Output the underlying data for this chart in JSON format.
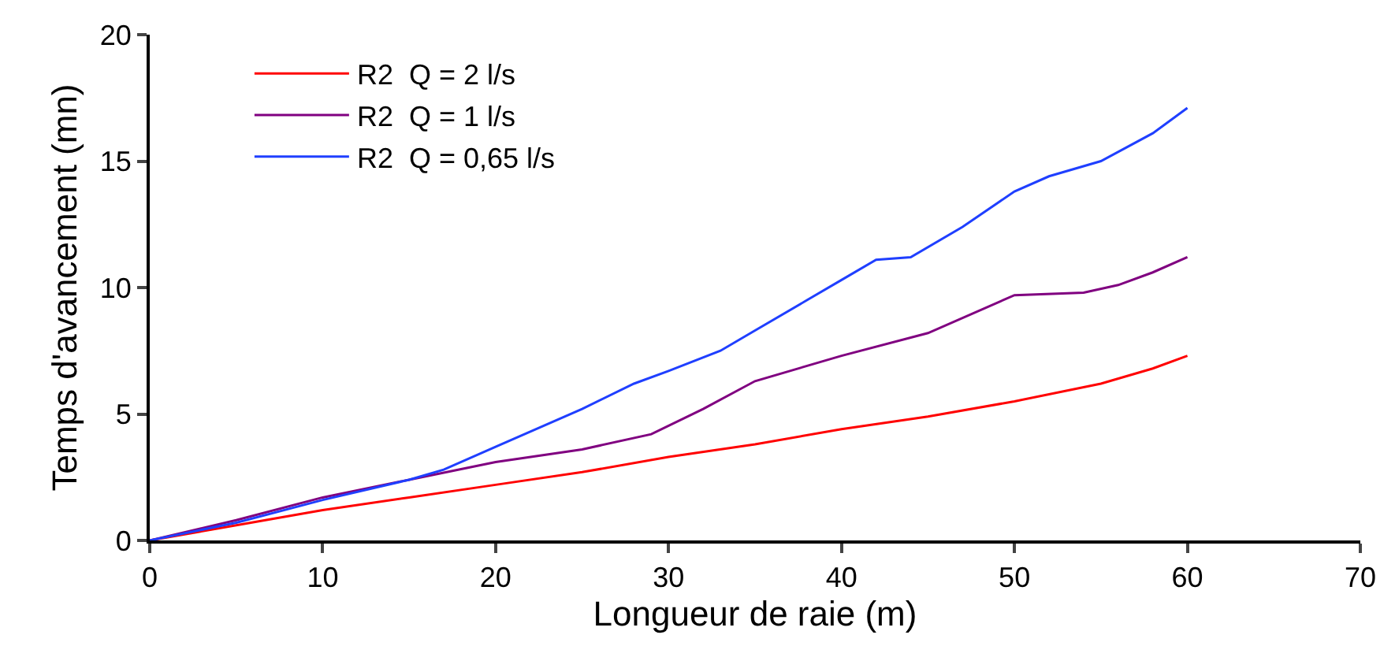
{
  "chart_data": {
    "type": "line",
    "xlabel": "Longueur de raie (m)",
    "ylabel": "Temps d'avancement (mn)",
    "xlim": [
      0,
      70
    ],
    "xticks": [
      0,
      10,
      20,
      30,
      40,
      50,
      60,
      70
    ],
    "ylim": [
      0,
      20
    ],
    "yticks": [
      0,
      5,
      10,
      15,
      20
    ],
    "grid": false,
    "legend": "top left",
    "marker": "none",
    "line_style": "solid",
    "series": [
      {
        "name": "R2  Q = 2 l/s",
        "color": "#ff0000",
        "x": [
          0,
          5,
          10,
          15,
          20,
          25,
          30,
          35,
          40,
          45,
          50,
          55,
          58,
          60
        ],
        "values": [
          0,
          0.6,
          1.2,
          1.7,
          2.2,
          2.7,
          3.3,
          3.8,
          4.4,
          4.9,
          5.5,
          6.2,
          6.8,
          7.3
        ]
      },
      {
        "name": "R2  Q = 1 l/s",
        "color": "#800080",
        "x": [
          0,
          5,
          10,
          15,
          20,
          25,
          29,
          32,
          35,
          40,
          45,
          50,
          54,
          56,
          58,
          60
        ],
        "values": [
          0,
          0.8,
          1.7,
          2.4,
          3.1,
          3.6,
          4.2,
          5.2,
          6.3,
          7.3,
          8.2,
          9.7,
          9.8,
          10.1,
          10.6,
          11.2
        ]
      },
      {
        "name": "R2  Q = 0,65 l/s",
        "color": "#1f3fff",
        "x": [
          0,
          5,
          10,
          15,
          17,
          20,
          25,
          28,
          30,
          33,
          35,
          38,
          40,
          42,
          44,
          47,
          50,
          52,
          55,
          58,
          60
        ],
        "values": [
          0,
          0.7,
          1.6,
          2.4,
          2.8,
          3.7,
          5.2,
          6.2,
          6.7,
          7.5,
          8.3,
          9.5,
          10.3,
          11.1,
          11.2,
          12.4,
          13.8,
          14.4,
          15.0,
          16.1,
          17.1
        ]
      }
    ]
  }
}
